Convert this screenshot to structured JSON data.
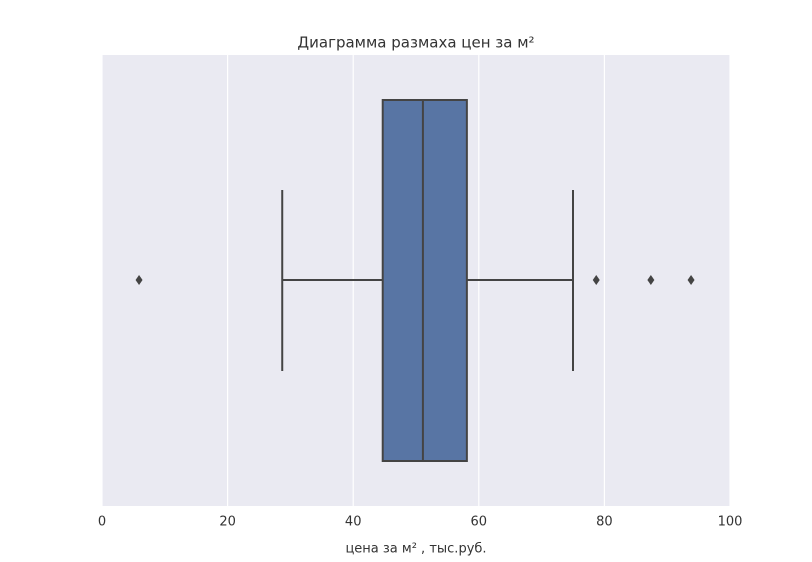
{
  "chart_data": {
    "type": "box",
    "title": "Диаграмма размаха цен за м²",
    "x_label": "цена за м² , тыс.руб.",
    "color": "#5875a4",
    "whisker_low": 28.7,
    "q1": 44.7,
    "median": 51.1,
    "q3": 58.1,
    "whisker_high": 75.0,
    "outliers": [
      5.9,
      78.7,
      87.4,
      93.8
    ],
    "xlim": [
      0,
      100
    ],
    "xticks": [
      0,
      20,
      40,
      60,
      80,
      100
    ],
    "grid": true
  }
}
